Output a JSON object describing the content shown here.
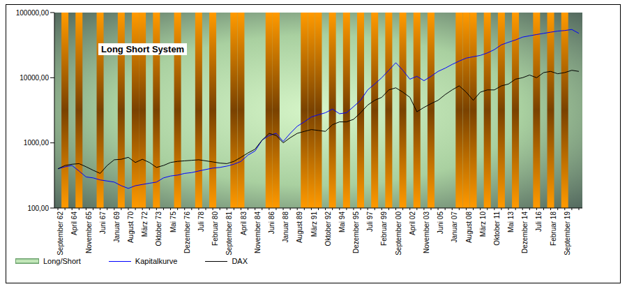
{
  "chart_data": {
    "type": "line",
    "title": "Long Short System",
    "log": "y",
    "ylim": [
      100,
      100000
    ],
    "yticks": [
      {
        "value": 100,
        "label": "100,00"
      },
      {
        "value": 1000,
        "label": "1000,00"
      },
      {
        "value": 10000,
        "label": "10000,00"
      },
      {
        "value": 100000,
        "label": "100000,00"
      }
    ],
    "y2lim": [
      0,
      1
    ],
    "legend": "bottom",
    "categories": [
      "September 62",
      null,
      "April 64",
      null,
      "November 65",
      null,
      "Juni 67",
      null,
      "Januar 69",
      null,
      "August 70",
      null,
      "März 72",
      null,
      "Oktober 73",
      null,
      "Mai 75",
      null,
      "Dezember 76",
      null,
      "Juli 78",
      null,
      "Februar 80",
      null,
      "September 81",
      null,
      "April 83",
      null,
      "November 84",
      null,
      "Juni 86",
      null,
      "Januar 88",
      null,
      "August 89",
      null,
      "März 91",
      null,
      "Oktober 92",
      null,
      "Mai 94",
      null,
      "Dezember 95",
      null,
      "Juli 97",
      null,
      "Februar 99",
      null,
      "September 00",
      null,
      "April 02",
      null,
      "November 03",
      null,
      "Juni 05",
      null,
      "Januar 07",
      null,
      "August 08",
      null,
      "März 10",
      null,
      "Oktober 11",
      null,
      "Mai 13",
      null,
      "Dezember 14",
      null,
      "Juli 16",
      null,
      "Februar 18",
      null,
      "September 19",
      null,
      null
    ],
    "series": [
      {
        "name": "Long/Short",
        "type": "bar",
        "axis": "y2",
        "color": "#ff9900",
        "values": [
          0,
          1,
          0,
          1,
          0,
          0,
          1,
          0,
          0,
          1,
          0,
          1,
          1,
          0,
          1,
          0,
          0,
          1,
          0,
          0,
          1,
          0,
          1,
          0,
          0,
          1,
          1,
          0,
          0,
          0,
          1,
          1,
          0,
          0,
          0,
          1,
          1,
          1,
          0,
          1,
          0,
          1,
          0,
          1,
          0,
          1,
          0,
          1,
          0,
          1,
          0,
          1,
          0,
          1,
          0,
          0,
          0,
          1,
          1,
          1,
          0,
          1,
          0,
          1,
          0,
          1,
          0,
          0,
          1,
          0,
          1,
          0,
          1,
          0,
          0
        ]
      },
      {
        "name": "Kapitalkurve",
        "type": "line",
        "color": "#0000ff",
        "values": [
          400,
          430,
          450,
          370,
          300,
          290,
          270,
          260,
          250,
          220,
          200,
          220,
          230,
          240,
          250,
          290,
          310,
          320,
          340,
          350,
          370,
          390,
          410,
          420,
          440,
          470,
          520,
          650,
          750,
          1100,
          1300,
          1400,
          1050,
          1400,
          1800,
          2100,
          2500,
          2700,
          2900,
          3300,
          2800,
          2900,
          3600,
          4500,
          6500,
          8000,
          10000,
          13000,
          17000,
          13000,
          9500,
          10500,
          9000,
          10500,
          12500,
          14000,
          16000,
          18000,
          20000,
          21000,
          22000,
          24000,
          27000,
          32000,
          35000,
          38000,
          42000,
          44000,
          46000,
          48000,
          50000,
          52000,
          53000,
          55000,
          48000
        ]
      },
      {
        "name": "DAX",
        "type": "line",
        "color": "#000000",
        "values": [
          400,
          450,
          470,
          480,
          430,
          380,
          340,
          450,
          550,
          560,
          600,
          500,
          560,
          500,
          420,
          450,
          500,
          520,
          530,
          540,
          550,
          530,
          510,
          490,
          480,
          520,
          600,
          700,
          800,
          1100,
          1400,
          1300,
          1000,
          1200,
          1400,
          1500,
          1600,
          1550,
          1500,
          1900,
          2100,
          2100,
          2300,
          2900,
          3800,
          4500,
          5000,
          6500,
          7000,
          6000,
          5000,
          3000,
          3500,
          4000,
          4500,
          5500,
          6500,
          7500,
          6000,
          4500,
          6000,
          6500,
          6500,
          7500,
          8000,
          9500,
          10000,
          11000,
          10000,
          12000,
          12500,
          11500,
          12000,
          13000,
          12500
        ]
      }
    ]
  }
}
